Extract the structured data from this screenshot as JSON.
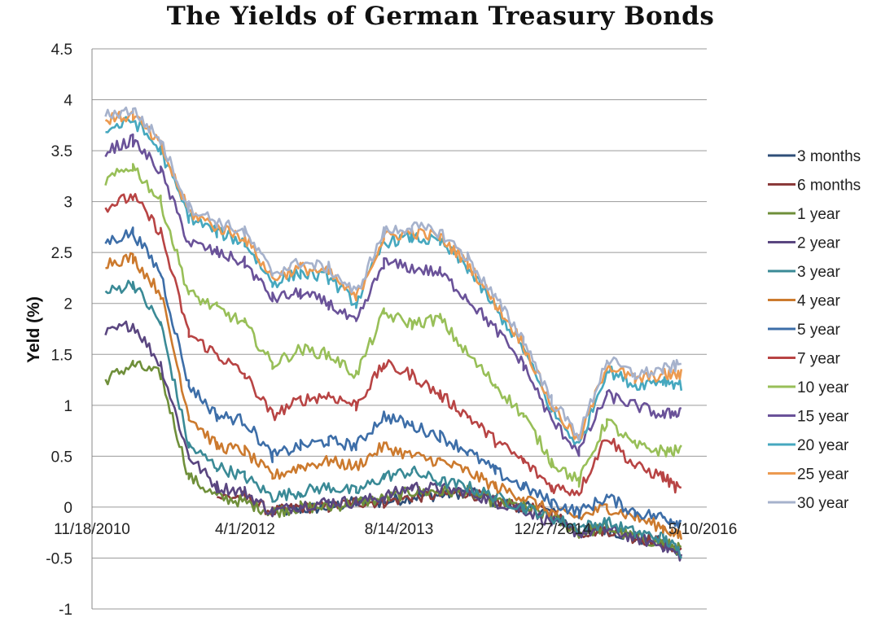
{
  "chart_data": {
    "type": "line",
    "title": "The Yields of German Treasury Bonds",
    "xlabel": "",
    "ylabel": "Yeld (%)",
    "ylim": [
      -1,
      4.5
    ],
    "yticks": [
      "4.5",
      "4",
      "3.5",
      "3",
      "2.5",
      "2",
      "1.5",
      "1",
      "0.5",
      "0",
      "-0.5",
      "-1"
    ],
    "xticks": [
      "11/18/2010",
      "4/1/2012",
      "8/14/2013",
      "12/27/2014",
      "5/10/2016"
    ],
    "x": [
      "2011-01",
      "2011-04",
      "2011-07",
      "2011-10",
      "2012-01",
      "2012-04",
      "2012-07",
      "2012-10",
      "2013-01",
      "2013-04",
      "2013-07",
      "2013-10",
      "2014-01",
      "2014-04",
      "2014-07",
      "2014-10",
      "2015-01",
      "2015-04",
      "2015-07",
      "2015-10",
      "2016-01",
      "2016-03"
    ],
    "legend_position": "right",
    "grid": "horizontal",
    "series": [
      {
        "name": "3 months",
        "color": "#2f4f78",
        "values": [
          null,
          null,
          null,
          null,
          null,
          null,
          -0.05,
          -0.02,
          0.0,
          0.05,
          0.05,
          0.1,
          0.12,
          0.15,
          0.05,
          0.0,
          -0.05,
          -0.25,
          -0.22,
          -0.3,
          -0.35,
          -0.45
        ]
      },
      {
        "name": "6 months",
        "color": "#8b3a3a",
        "values": [
          null,
          null,
          null,
          null,
          0.1,
          0.1,
          -0.05,
          0.0,
          0.0,
          0.05,
          0.05,
          0.1,
          0.12,
          0.15,
          0.05,
          0.0,
          -0.05,
          -0.25,
          -0.22,
          -0.3,
          -0.35,
          -0.42
        ]
      },
      {
        "name": "1 year",
        "color": "#6f8f3a",
        "values": [
          1.25,
          1.4,
          1.3,
          0.3,
          0.1,
          0.05,
          -0.05,
          0.0,
          0.0,
          0.05,
          0.08,
          0.15,
          0.15,
          0.15,
          0.05,
          0.0,
          -0.1,
          -0.25,
          -0.2,
          -0.3,
          -0.35,
          -0.42
        ]
      },
      {
        "name": "2 year",
        "color": "#5a4680",
        "values": [
          1.7,
          1.8,
          1.4,
          0.5,
          0.2,
          0.15,
          -0.05,
          0.02,
          0.05,
          0.05,
          0.1,
          0.2,
          0.18,
          0.15,
          0.05,
          -0.02,
          -0.15,
          -0.25,
          -0.22,
          -0.3,
          -0.38,
          -0.48
        ]
      },
      {
        "name": "3 year",
        "color": "#3a8a96",
        "values": [
          2.1,
          2.2,
          1.8,
          0.6,
          0.4,
          0.3,
          0.1,
          0.15,
          0.2,
          0.15,
          0.3,
          0.35,
          0.25,
          0.2,
          0.1,
          0.0,
          -0.1,
          -0.2,
          -0.15,
          -0.25,
          -0.3,
          -0.45
        ]
      },
      {
        "name": "4 year",
        "color": "#cc7a2e",
        "values": [
          2.4,
          2.45,
          2.1,
          0.9,
          0.6,
          0.55,
          0.3,
          0.4,
          0.45,
          0.4,
          0.6,
          0.5,
          0.45,
          0.35,
          0.2,
          0.1,
          -0.05,
          -0.1,
          0.0,
          -0.1,
          -0.2,
          -0.3
        ]
      },
      {
        "name": "5 year",
        "color": "#3d6ea8",
        "values": [
          2.6,
          2.7,
          2.3,
          1.2,
          0.9,
          0.85,
          0.5,
          0.6,
          0.65,
          0.6,
          0.9,
          0.8,
          0.7,
          0.55,
          0.35,
          0.2,
          0.05,
          -0.05,
          0.1,
          -0.05,
          -0.1,
          -0.15
        ]
      },
      {
        "name": "7 year",
        "color": "#b84444",
        "values": [
          2.95,
          3.05,
          2.7,
          1.7,
          1.5,
          1.3,
          0.9,
          1.05,
          1.1,
          1.0,
          1.4,
          1.3,
          1.1,
          0.9,
          0.65,
          0.45,
          0.2,
          0.15,
          0.7,
          0.4,
          0.3,
          0.15
        ]
      },
      {
        "name": "10 year",
        "color": "#98bf58",
        "values": [
          3.2,
          3.35,
          3.0,
          2.1,
          1.95,
          1.8,
          1.4,
          1.55,
          1.5,
          1.3,
          1.9,
          1.8,
          1.85,
          1.5,
          1.2,
          0.9,
          0.45,
          0.25,
          0.85,
          0.6,
          0.55,
          0.55
        ]
      },
      {
        "name": "15 year",
        "color": "#6a5299",
        "values": [
          3.5,
          3.6,
          3.3,
          2.6,
          2.5,
          2.4,
          2.05,
          2.1,
          2.0,
          1.8,
          2.4,
          2.35,
          2.3,
          2.05,
          1.75,
          1.4,
          0.85,
          0.55,
          1.1,
          1.0,
          0.9,
          0.95
        ]
      },
      {
        "name": "20 year",
        "color": "#46a8bf",
        "values": [
          3.7,
          3.8,
          3.5,
          2.85,
          2.7,
          2.6,
          2.2,
          2.3,
          2.25,
          2.0,
          2.6,
          2.65,
          2.6,
          2.35,
          1.95,
          1.55,
          0.95,
          0.6,
          1.35,
          1.2,
          1.25,
          1.2
        ]
      },
      {
        "name": "25 year",
        "color": "#ec9a50",
        "values": [
          3.8,
          3.85,
          3.55,
          2.9,
          2.75,
          2.65,
          2.25,
          2.35,
          2.3,
          2.05,
          2.65,
          2.7,
          2.65,
          2.4,
          2.0,
          1.6,
          1.0,
          0.65,
          1.4,
          1.25,
          1.3,
          1.3
        ]
      },
      {
        "name": "30 year",
        "color": "#a6b2cc",
        "values": [
          3.85,
          3.9,
          3.6,
          2.95,
          2.8,
          2.7,
          2.3,
          2.4,
          2.35,
          2.1,
          2.7,
          2.75,
          2.7,
          2.45,
          2.05,
          1.65,
          1.05,
          0.7,
          1.45,
          1.3,
          1.35,
          1.4
        ]
      }
    ]
  }
}
